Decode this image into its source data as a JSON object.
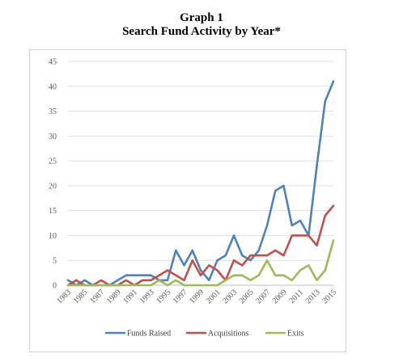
{
  "chart_data": {
    "type": "line",
    "title": "Graph 1",
    "subtitle": "Search Fund Activity by Year*",
    "xlabel": "",
    "ylabel": "",
    "ylim": [
      0,
      45
    ],
    "yticks": [
      0,
      5,
      10,
      15,
      20,
      25,
      30,
      35,
      40,
      45
    ],
    "x": [
      1983,
      1984,
      1985,
      1986,
      1987,
      1988,
      1989,
      1990,
      1991,
      1992,
      1993,
      1994,
      1995,
      1996,
      1997,
      1998,
      1999,
      2000,
      2001,
      2002,
      2003,
      2004,
      2005,
      2006,
      2007,
      2008,
      2009,
      2010,
      2011,
      2012,
      2013,
      2014,
      2015
    ],
    "xtick_labels": [
      "1983",
      "1985",
      "1987",
      "1989",
      "1991",
      "1993",
      "1995",
      "1997",
      "1999",
      "2001",
      "2003",
      "2005",
      "2007",
      "2009",
      "2011",
      "2013",
      "2015"
    ],
    "grid": true,
    "legend_position": "bottom",
    "series": [
      {
        "name": "Funds Raised",
        "color": "#4f81bd",
        "values": [
          1,
          0,
          1,
          0,
          0,
          0,
          1,
          2,
          2,
          2,
          2,
          1,
          1,
          7,
          4,
          7,
          3,
          1,
          5,
          6,
          10,
          6,
          5,
          7,
          12,
          19,
          20,
          12,
          13,
          10,
          24,
          37,
          41
        ]
      },
      {
        "name": "Acquisitions",
        "color": "#c0504d",
        "values": [
          0,
          1,
          0,
          0,
          1,
          0,
          0,
          1,
          0,
          1,
          1,
          2,
          3,
          2,
          1,
          5,
          2,
          4,
          3,
          1,
          5,
          4,
          6,
          6,
          6,
          7,
          6,
          10,
          10,
          10,
          8,
          14,
          16
        ]
      },
      {
        "name": "Exits",
        "color": "#9bbb59",
        "values": [
          0,
          0,
          0,
          0,
          0,
          0,
          0,
          0,
          0,
          0,
          0,
          1,
          0,
          1,
          0,
          0,
          0,
          0,
          0,
          1,
          2,
          2,
          1,
          2,
          5,
          2,
          2,
          1,
          3,
          4,
          1,
          3,
          9
        ]
      }
    ]
  }
}
